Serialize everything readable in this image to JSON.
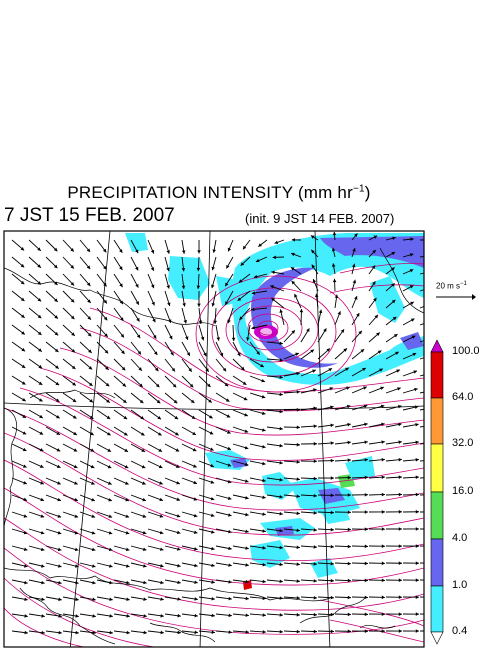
{
  "header": {
    "title_prefix": "PRECIPITATION INTENSITY (mm hr",
    "title_exp": "−1",
    "title_suffix": ")",
    "valid_time": "7 JST 15 FEB. 2007",
    "init_time": "(init. 9 JST 14 FEB. 2007)"
  },
  "scale": {
    "prefix": "20 m s",
    "exp": "−1"
  },
  "legend": {
    "labels": [
      "100.0",
      "64.0",
      "32.0",
      "16.0",
      "4.0",
      "1.0",
      "0.4"
    ],
    "colors": [
      "#cc00cc",
      "#dd0000",
      "#ff9933",
      "#ffff44",
      "#55dd55",
      "#6666ee",
      "#44eeff",
      "#ffffff"
    ]
  },
  "map": {
    "contour_color": "#cc0077",
    "coast_color": "#000000",
    "vector_color": "#000000"
  }
}
